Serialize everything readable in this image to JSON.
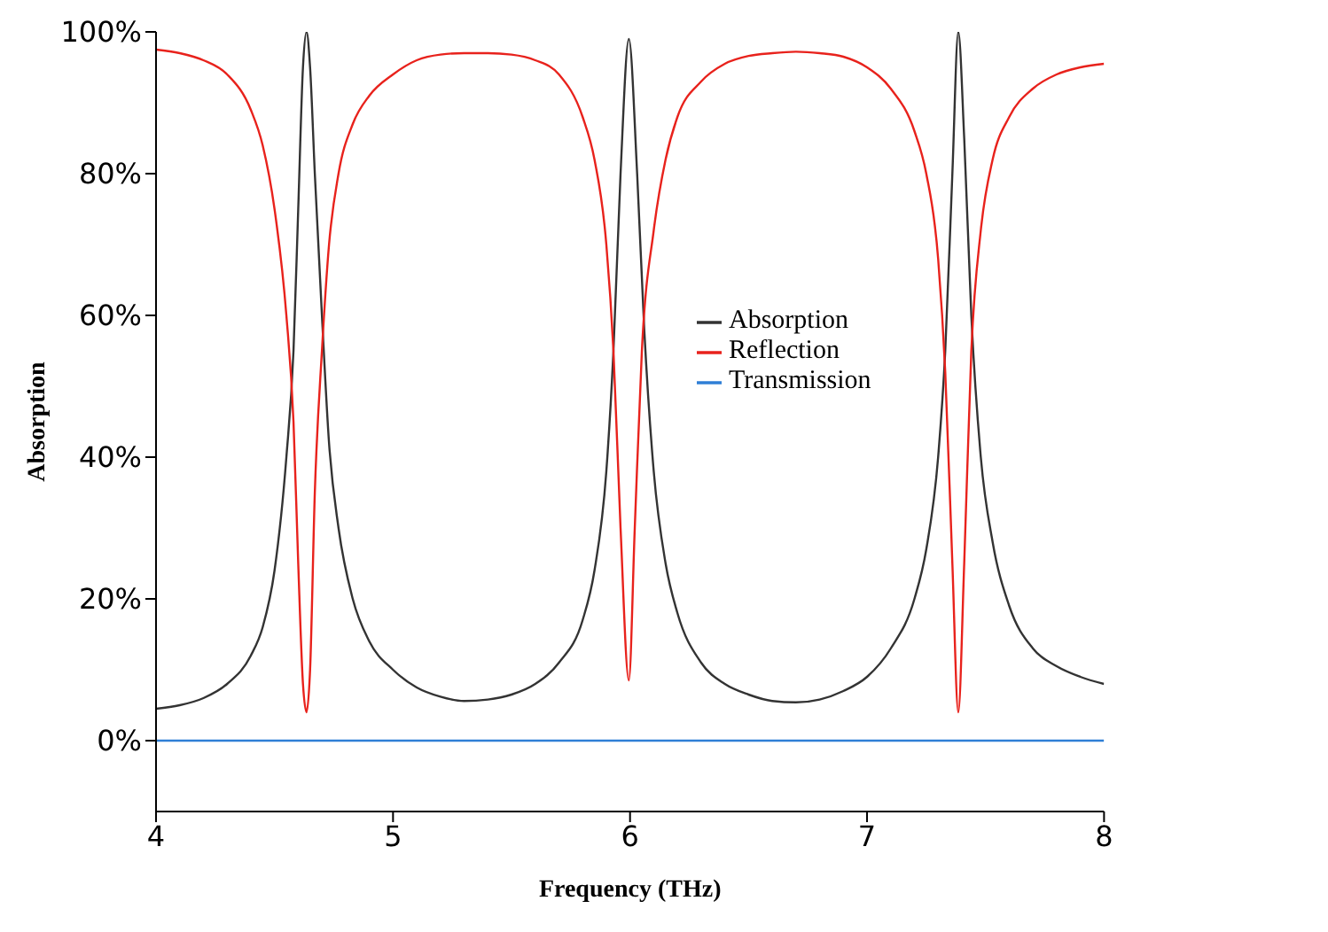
{
  "chart_data": {
    "type": "line",
    "xlabel": "Frequency (THz)",
    "ylabel": "Absorption",
    "xlim": [
      4,
      8
    ],
    "xticks": [
      4,
      5,
      6,
      7,
      8
    ],
    "ylim": [
      -10,
      100
    ],
    "yticks": [
      {
        "value": 0,
        "label": "0%"
      },
      {
        "value": 20,
        "label": "20%"
      },
      {
        "value": 40,
        "label": "40%"
      },
      {
        "value": 60,
        "label": "60%"
      },
      {
        "value": 80,
        "label": "80%"
      },
      {
        "value": 100,
        "label": "100%"
      }
    ],
    "grid": false,
    "legend": "right",
    "marker": "none",
    "line_style": "solid",
    "series": [
      {
        "name": "Absorption",
        "color": "#333333",
        "x": [
          4.0,
          4.1,
          4.2,
          4.3,
          4.4,
          4.45,
          4.5,
          4.55,
          4.58,
          4.6,
          4.62,
          4.635,
          4.65,
          4.67,
          4.7,
          4.73,
          4.77,
          4.83,
          4.9,
          5.0,
          5.1,
          5.2,
          5.3,
          5.4,
          5.5,
          5.6,
          5.7,
          5.8,
          5.85,
          5.9,
          5.93,
          5.96,
          5.995,
          6.03,
          6.06,
          6.1,
          6.15,
          6.2,
          6.3,
          6.4,
          6.5,
          6.6,
          6.7,
          6.8,
          6.9,
          7.0,
          7.1,
          7.2,
          7.25,
          7.3,
          7.33,
          7.36,
          7.385,
          7.41,
          7.44,
          7.48,
          7.53,
          7.6,
          7.7,
          7.8,
          7.9,
          8.0
        ],
        "values": [
          4.5,
          5,
          6,
          8,
          12,
          16,
          24,
          40,
          55,
          75,
          95,
          100,
          95,
          80,
          60,
          42,
          30,
          20,
          14,
          10,
          7.5,
          6.2,
          5.6,
          5.8,
          6.5,
          8,
          11,
          17,
          24,
          38,
          55,
          80,
          99,
          80,
          58,
          38,
          25,
          18,
          11,
          8,
          6.5,
          5.6,
          5.4,
          5.8,
          7,
          9,
          13,
          20,
          27,
          40,
          55,
          80,
          100,
          85,
          60,
          40,
          28,
          19,
          13,
          10.5,
          9,
          8
        ]
      },
      {
        "name": "Reflection",
        "color": "#e8221c",
        "x": [
          4.0,
          4.1,
          4.2,
          4.3,
          4.4,
          4.45,
          4.5,
          4.55,
          4.58,
          4.6,
          4.62,
          4.635,
          4.65,
          4.67,
          4.7,
          4.73,
          4.77,
          4.83,
          4.9,
          5.0,
          5.1,
          5.2,
          5.3,
          5.4,
          5.5,
          5.6,
          5.7,
          5.8,
          5.85,
          5.9,
          5.93,
          5.96,
          5.995,
          6.02,
          6.05,
          6.1,
          6.15,
          6.2,
          6.3,
          6.4,
          6.5,
          6.6,
          6.7,
          6.8,
          6.9,
          7.0,
          7.1,
          7.2,
          7.25,
          7.3,
          7.33,
          7.36,
          7.385,
          7.41,
          7.44,
          7.48,
          7.53,
          7.6,
          7.7,
          7.8,
          7.9,
          8.0
        ],
        "values": [
          97.5,
          97,
          96,
          94,
          89,
          84,
          75,
          60,
          45,
          25,
          8,
          4,
          10,
          35,
          55,
          70,
          80,
          87,
          91,
          94,
          96,
          96.8,
          97,
          97,
          96.8,
          96,
          94,
          88,
          82,
          70,
          55,
          30,
          8.5,
          30,
          55,
          72,
          82,
          88,
          93,
          95.5,
          96.6,
          97,
          97.2,
          97,
          96.5,
          95,
          92,
          86,
          80,
          68,
          52,
          25,
          4,
          25,
          55,
          72,
          82,
          88,
          92,
          94,
          95,
          95.5
        ]
      },
      {
        "name": "Transmission",
        "color": "#2f7fd6",
        "x": [
          4,
          8
        ],
        "values": [
          0,
          0
        ]
      }
    ]
  }
}
